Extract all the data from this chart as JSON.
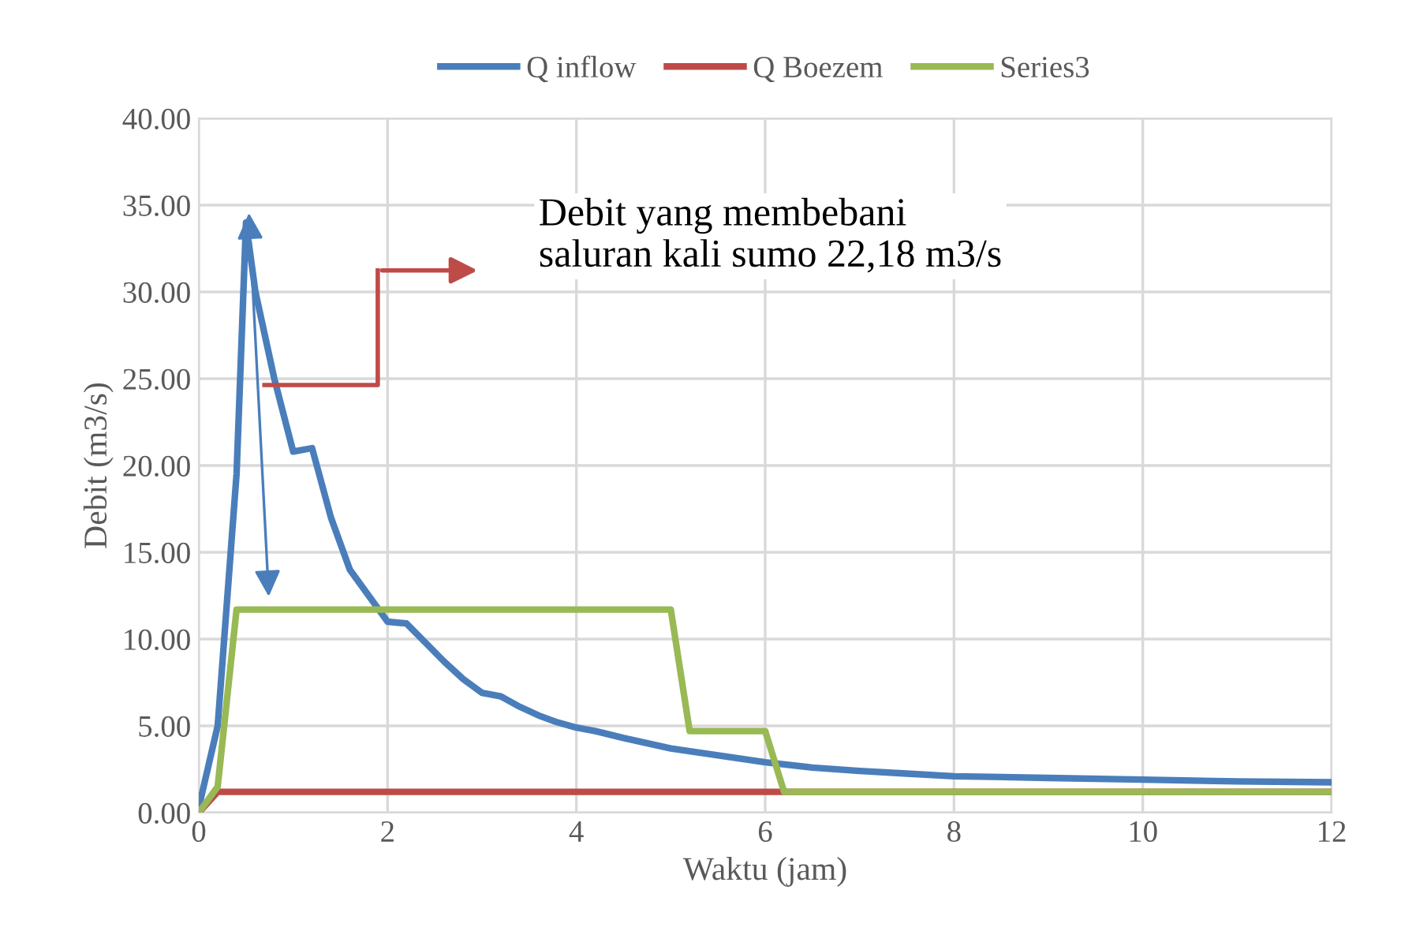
{
  "chart_data": {
    "type": "line",
    "xlabel": "Waktu (jam)",
    "ylabel": "Debit (m3/s)",
    "xlim": [
      0,
      12
    ],
    "xticks": [
      0,
      2,
      4,
      6,
      8,
      10,
      12
    ],
    "ylim": [
      0,
      40
    ],
    "yticks": [
      {
        "value": 0,
        "label": "0.00"
      },
      {
        "value": 5,
        "label": "5.00"
      },
      {
        "value": 10,
        "label": "10.00"
      },
      {
        "value": 15,
        "label": "15.00"
      },
      {
        "value": 20,
        "label": "20.00"
      },
      {
        "value": 25,
        "label": "25.00"
      },
      {
        "value": 30,
        "label": "30.00"
      },
      {
        "value": 35,
        "label": "35.00"
      },
      {
        "value": 40,
        "label": "40.00"
      }
    ],
    "grid": true,
    "legend": "top",
    "marker": "none",
    "line_style": "solid",
    "annotations": [
      "Debit yang membebani\nsaluran kali sumo 22,18 m3/s"
    ],
    "series": [
      {
        "name": "Q inflow",
        "color": "#4a7ebb",
        "x": [
          0,
          0.2,
          0.4,
          0.5,
          0.6,
          0.8,
          1.0,
          1.2,
          1.4,
          1.6,
          1.8,
          2.0,
          2.2,
          2.4,
          2.6,
          2.8,
          3.0,
          3.2,
          3.4,
          3.6,
          3.8,
          4.0,
          4.2,
          4.5,
          5,
          5.5,
          6,
          6.5,
          7,
          7.5,
          8,
          9,
          10,
          11,
          12
        ],
        "values": [
          0.3,
          5,
          19.5,
          34,
          30,
          25,
          20.8,
          21,
          17,
          14,
          12.5,
          11,
          10.9,
          9.8,
          8.7,
          7.7,
          6.9,
          6.7,
          6.1,
          5.6,
          5.2,
          4.9,
          4.7,
          4.3,
          3.7,
          3.3,
          2.9,
          2.6,
          2.4,
          2.25,
          2.1,
          2.0,
          1.9,
          1.8,
          1.75
        ]
      },
      {
        "name": "Q Boezem",
        "color": "#be4b48",
        "x": [
          0,
          0.2,
          12
        ],
        "values": [
          0,
          1.2,
          1.2
        ]
      },
      {
        "name": "Series3",
        "color": "#98b954",
        "x": [
          0,
          0.2,
          0.4,
          5,
          5.2,
          6,
          6.2,
          12
        ],
        "values": [
          0,
          1.5,
          11.7,
          11.7,
          4.7,
          4.7,
          1.2,
          1.2
        ]
      }
    ]
  }
}
